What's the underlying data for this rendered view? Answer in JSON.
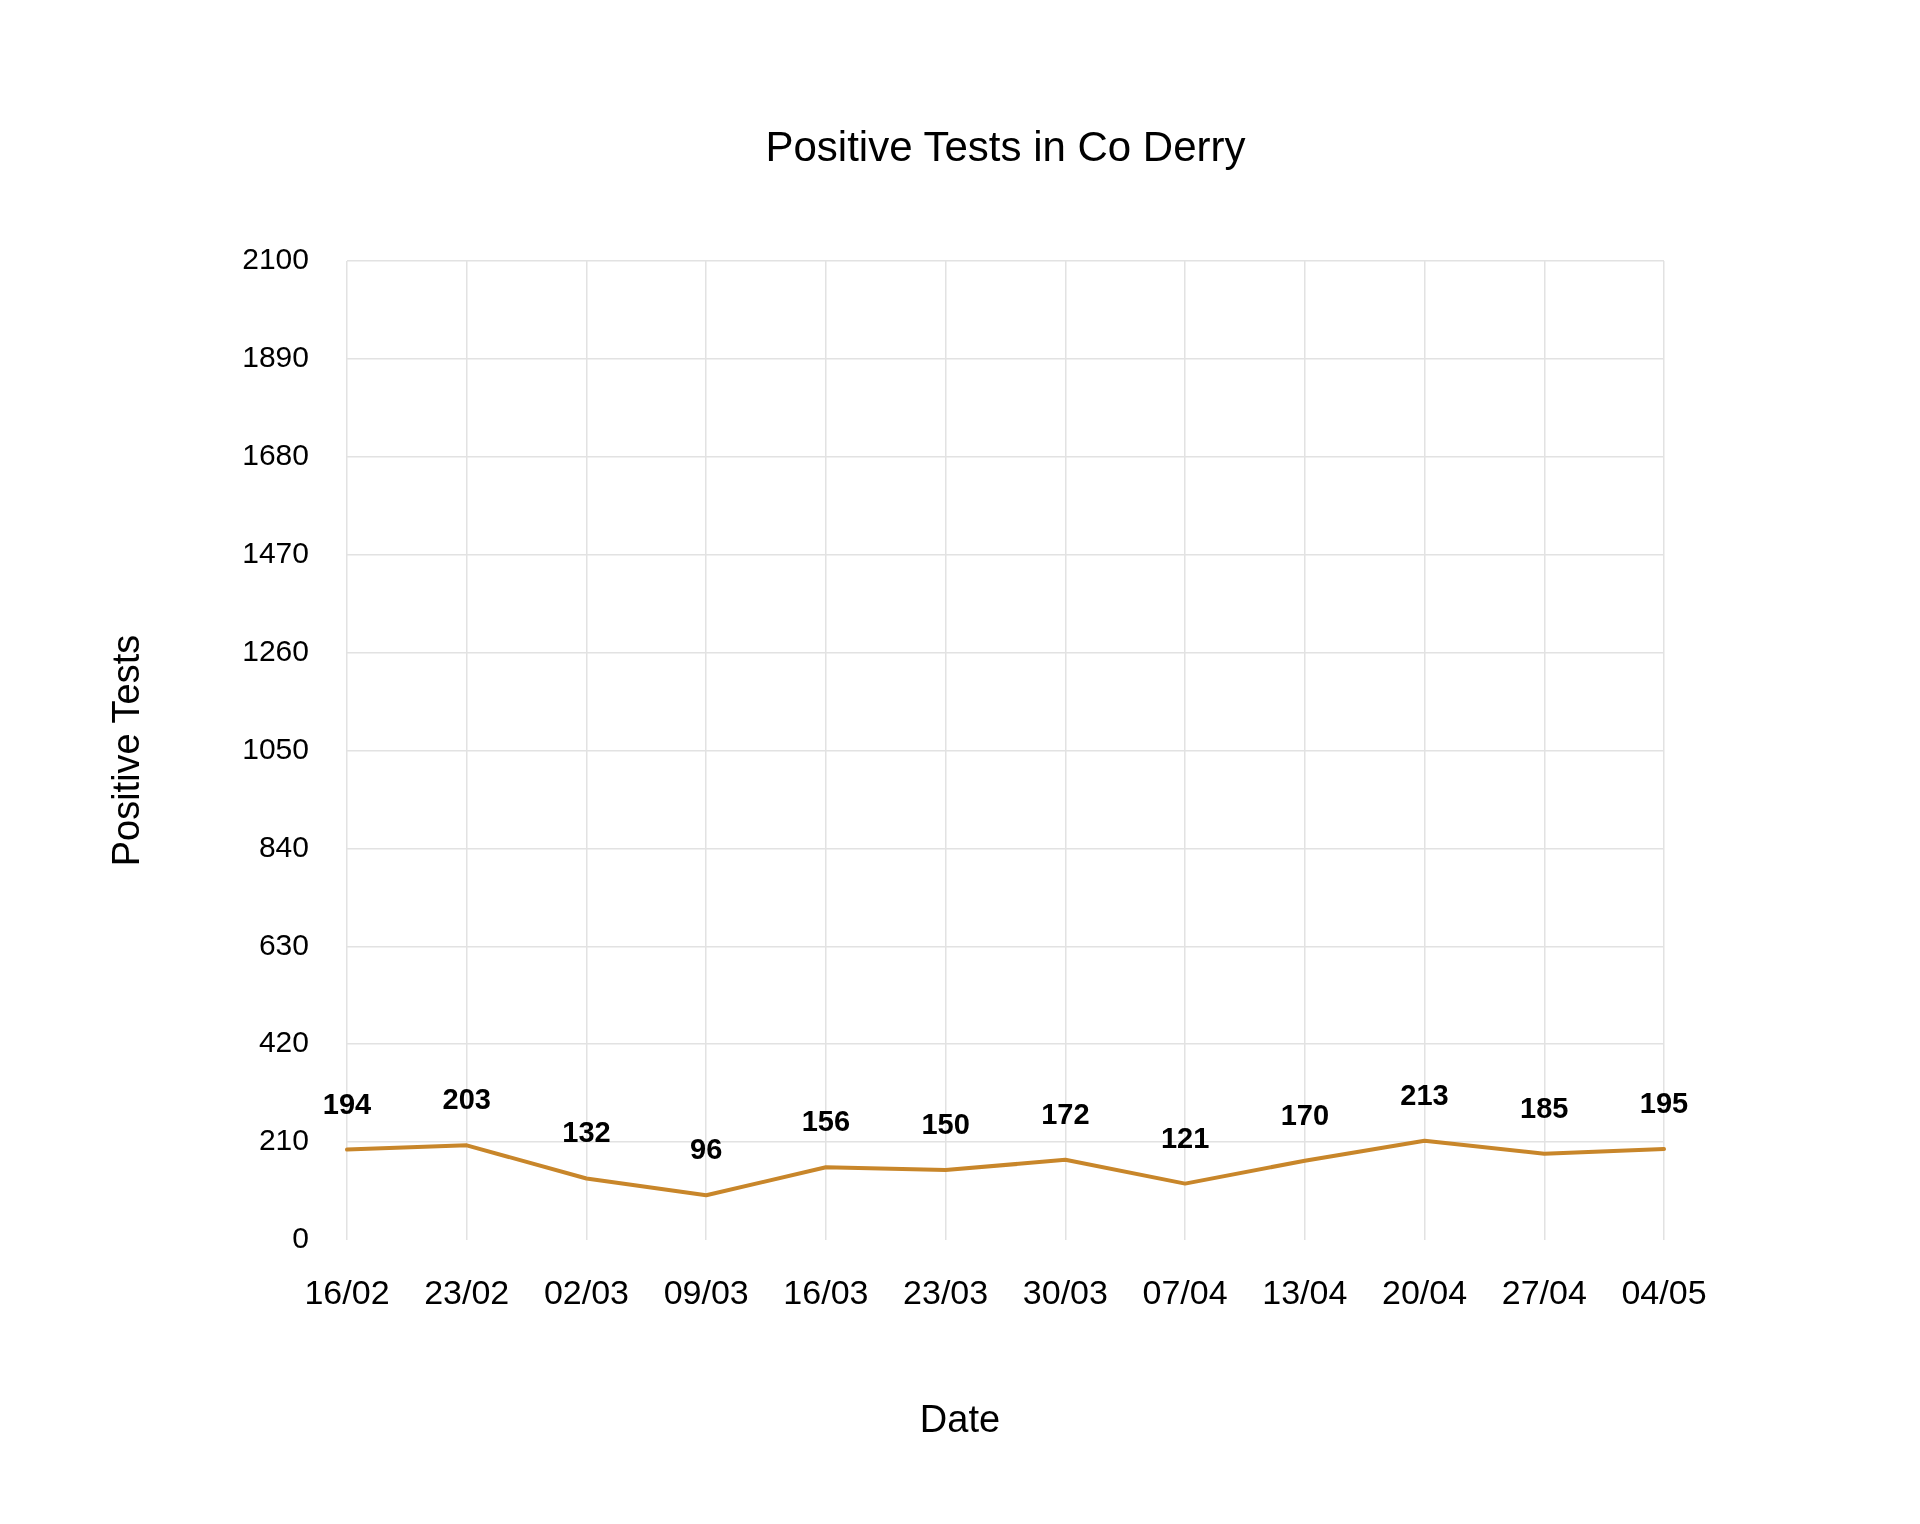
{
  "chart_data": {
    "type": "line",
    "title": "Positive Tests in Co Derry",
    "xlabel": "Date",
    "ylabel": "Positive Tests",
    "categories": [
      "16/02",
      "23/02",
      "02/03",
      "09/03",
      "16/03",
      "23/03",
      "30/03",
      "07/04",
      "13/04",
      "20/04",
      "27/04",
      "04/05"
    ],
    "values": [
      194,
      203,
      132,
      96,
      156,
      150,
      172,
      121,
      170,
      213,
      185,
      195
    ],
    "color": "#c8862a",
    "ylim": [
      0,
      2100
    ],
    "yticks": [
      0,
      210,
      420,
      630,
      840,
      1050,
      1260,
      1470,
      1680,
      1890,
      2100
    ],
    "grid": true,
    "legend": false,
    "marker": "none",
    "line_style": "solid",
    "data_labels": true
  }
}
